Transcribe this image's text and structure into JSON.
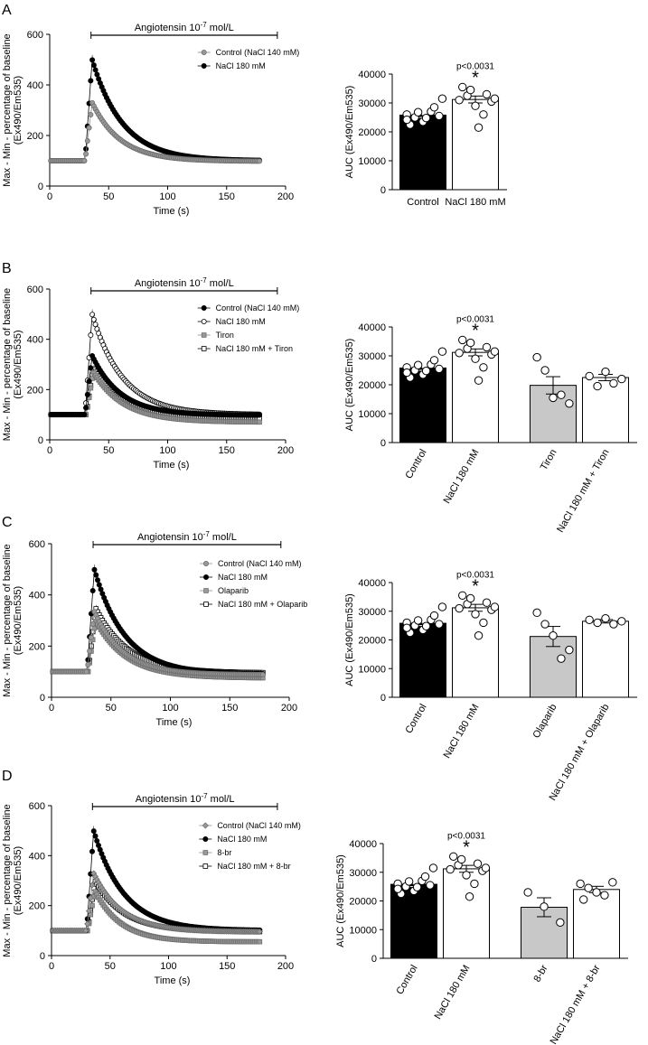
{
  "figure": {
    "common": {
      "line_x_label": "Time (s)",
      "line_y_label_1": "Max - Min - percentage of baseline",
      "line_y_label_2": "(Ex490/Em535)",
      "bar_y_label": "AUC (Ex490/Em535)",
      "stim_label": "Angiotensin 10",
      "stim_exp": "-7",
      "stim_unit": " mol/L",
      "sig_star": "*"
    },
    "colors": {
      "black": "#000000",
      "gray_marker": "#999999",
      "gray_bar": "#c8c8c8",
      "white": "#ffffff"
    }
  },
  "chart_data": [
    {
      "panel": "A",
      "type": "line",
      "xlabel": "Time (s)",
      "ylabel": "Max - Min - percentage of baseline (Ex490/Em535)",
      "xlim": [
        0,
        200
      ],
      "ylim": [
        0,
        600
      ],
      "xticks": [
        0,
        50,
        100,
        150,
        200
      ],
      "yticks": [
        0,
        200,
        400,
        600
      ],
      "stimulus": {
        "label": "Angiotensin 10-7 mol/L",
        "start": 35,
        "end": 193
      },
      "series": [
        {
          "name": "Control (NaCl 140 mM)",
          "marker": "circle-gray",
          "baseline": 100,
          "peak": 330,
          "peak_time": 36,
          "end_value": 98,
          "tau": 24,
          "sem": 10,
          "rise_start": 30
        },
        {
          "name": "NaCl 180 mM",
          "marker": "circle-black",
          "baseline": 100,
          "peak": 500,
          "peak_time": 36,
          "end_value": 100,
          "tau": 26,
          "sem": 20,
          "rise_start": 30
        }
      ]
    },
    {
      "panel": "A",
      "type": "bar",
      "ylabel": "AUC (Ex490/Em535)",
      "ylim": [
        0,
        40000
      ],
      "yticks": [
        0,
        10000,
        20000,
        30000,
        40000
      ],
      "p_value": "p<0.0031",
      "sig_index": 1,
      "categories": [
        "Control",
        "NaCl 180 mM"
      ],
      "rotated": false,
      "bars": [
        {
          "name": "Control",
          "mean": 25800,
          "sem": 800,
          "fill": "black",
          "points": [
            26000,
            25000,
            23500,
            27000,
            25500,
            22500,
            26800,
            24800,
            28500,
            31500,
            24200
          ]
        },
        {
          "name": "NaCl 180 mM",
          "mean": 31200,
          "sem": 1200,
          "fill": "white",
          "points": [
            31000,
            32500,
            29000,
            26000,
            30500,
            35500,
            34500,
            21500,
            33000,
            31500
          ]
        }
      ]
    },
    {
      "panel": "B",
      "type": "line",
      "xlabel": "Time (s)",
      "ylabel": "Max - Min - percentage of baseline (Ex490/Em535)",
      "xlim": [
        0,
        200
      ],
      "ylim": [
        0,
        600
      ],
      "xticks": [
        0,
        50,
        100,
        150,
        200
      ],
      "yticks": [
        0,
        200,
        400,
        600
      ],
      "stimulus": {
        "label": "Angiotensin 10-7 mol/L",
        "start": 35,
        "end": 193
      },
      "series": [
        {
          "name": "Control (NaCl 140 mM)",
          "marker": "circle-black",
          "baseline": 100,
          "peak": 335,
          "peak_time": 36,
          "end_value": 98,
          "tau": 24,
          "sem": 10,
          "rise_start": 30
        },
        {
          "name": "NaCl 180 mM",
          "marker": "circle-open",
          "baseline": 100,
          "peak": 500,
          "peak_time": 36,
          "end_value": 100,
          "tau": 26,
          "sem": 20,
          "rise_start": 30
        },
        {
          "name": "Tiron",
          "marker": "square-gray",
          "baseline": 100,
          "peak": 270,
          "peak_time": 37,
          "end_value": 70,
          "tau": 26,
          "sem": 25,
          "rise_start": 31
        },
        {
          "name": "NaCl 180 mM + Tiron",
          "marker": "square-open",
          "baseline": 100,
          "peak": 285,
          "peak_time": 37,
          "end_value": 85,
          "tau": 26,
          "sem": 15,
          "rise_start": 31
        }
      ]
    },
    {
      "panel": "B",
      "type": "bar",
      "ylabel": "AUC (Ex490/Em535)",
      "ylim": [
        0,
        40000
      ],
      "yticks": [
        0,
        10000,
        20000,
        30000,
        40000
      ],
      "p_value": "p<0.0031",
      "sig_index": 1,
      "categories": [
        "Control",
        "NaCl 180 mM",
        "Tiron",
        "NaCl 180 mM + Tiron"
      ],
      "rotated": true,
      "bars": [
        {
          "name": "Control",
          "mean": 25800,
          "sem": 800,
          "fill": "black",
          "points": [
            26000,
            25000,
            23500,
            27000,
            25500,
            22500,
            26800,
            24800,
            28500,
            31500,
            24200
          ]
        },
        {
          "name": "NaCl 180 mM",
          "mean": 31200,
          "sem": 1200,
          "fill": "white",
          "points": [
            31000,
            32500,
            29000,
            26000,
            30500,
            35500,
            34500,
            21500,
            33000,
            31500
          ]
        },
        {
          "name": "Tiron",
          "mean": 19800,
          "sem": 3000,
          "fill": "gray",
          "points": [
            29500,
            25000,
            15500,
            16500,
            13500
          ]
        },
        {
          "name": "NaCl 180 mM + Tiron",
          "mean": 22500,
          "sem": 1100,
          "fill": "white",
          "points": [
            23000,
            19500,
            24500,
            20500,
            22000
          ]
        }
      ]
    },
    {
      "panel": "C",
      "type": "line",
      "xlabel": "Time (s)",
      "ylabel": "Max - Min - percentage of baseline (Ex490/Em535)",
      "xlim": [
        0,
        200
      ],
      "ylim": [
        0,
        600
      ],
      "xticks": [
        0,
        50,
        100,
        150,
        200
      ],
      "yticks": [
        0,
        200,
        400,
        600
      ],
      "stimulus": {
        "label": "Angiotensin 10-7 mol/L",
        "start": 35,
        "end": 193
      },
      "series": [
        {
          "name": "Control (NaCl 140 mM)",
          "marker": "circle-gray",
          "baseline": 100,
          "peak": 335,
          "peak_time": 36,
          "end_value": 88,
          "tau": 24,
          "sem": 10,
          "rise_start": 30
        },
        {
          "name": "NaCl 180 mM",
          "marker": "circle-black",
          "baseline": 100,
          "peak": 500,
          "peak_time": 36,
          "end_value": 90,
          "tau": 26,
          "sem": 20,
          "rise_start": 30
        },
        {
          "name": "Olaparib",
          "marker": "square-gray",
          "baseline": 100,
          "peak": 300,
          "peak_time": 37,
          "end_value": 75,
          "tau": 26,
          "sem": 35,
          "rise_start": 31
        },
        {
          "name": "NaCl 180 mM + Olaparib",
          "marker": "square-open",
          "baseline": 100,
          "peak": 350,
          "peak_time": 37,
          "end_value": 95,
          "tau": 27,
          "sem": 15,
          "rise_start": 31
        }
      ]
    },
    {
      "panel": "C",
      "type": "bar",
      "ylabel": "AUC (Ex490/Em535)",
      "ylim": [
        0,
        40000
      ],
      "yticks": [
        0,
        10000,
        20000,
        30000,
        40000
      ],
      "p_value": "p<0.0031",
      "sig_index": 1,
      "categories": [
        "Control",
        "NaCl 180 mM",
        "Olaparib",
        "NaCl 180 mM + Olaparib"
      ],
      "rotated": true,
      "bars": [
        {
          "name": "Control",
          "mean": 25800,
          "sem": 800,
          "fill": "black",
          "points": [
            26000,
            25000,
            23500,
            27000,
            25500,
            22500,
            26800,
            24800,
            28500,
            31500,
            24200
          ]
        },
        {
          "name": "NaCl 180 mM",
          "mean": 31200,
          "sem": 1200,
          "fill": "white",
          "points": [
            31000,
            32500,
            29000,
            26000,
            30500,
            35500,
            34500,
            21500,
            33000,
            31500
          ]
        },
        {
          "name": "Olaparib",
          "mean": 21200,
          "sem": 3500,
          "fill": "gray",
          "points": [
            29500,
            25500,
            21500,
            13500,
            16500
          ]
        },
        {
          "name": "NaCl 180 mM + Olaparib",
          "mean": 26500,
          "sem": 600,
          "fill": "white",
          "points": [
            27000,
            26000,
            27500,
            25500,
            26500
          ]
        }
      ]
    },
    {
      "panel": "D",
      "type": "line",
      "xlabel": "Time (s)",
      "ylabel": "Max - Min - percentage of baseline (Ex490/Em535)",
      "xlim": [
        0,
        200
      ],
      "ylim": [
        0,
        600
      ],
      "xticks": [
        0,
        50,
        100,
        150,
        200
      ],
      "yticks": [
        0,
        200,
        400,
        600
      ],
      "stimulus": {
        "label": "Angiotensin 10-7 mol/L",
        "start": 35,
        "end": 193
      },
      "series": [
        {
          "name": "Control (NaCl 140 mM)",
          "marker": "diamond-gray",
          "baseline": 100,
          "peak": 330,
          "peak_time": 36,
          "end_value": 95,
          "tau": 24,
          "sem": 10,
          "rise_start": 30
        },
        {
          "name": "NaCl 180 mM",
          "marker": "circle-black",
          "baseline": 100,
          "peak": 500,
          "peak_time": 36,
          "end_value": 100,
          "tau": 26,
          "sem": 20,
          "rise_start": 30
        },
        {
          "name": "8-br",
          "marker": "square-gray",
          "baseline": 100,
          "peak": 260,
          "peak_time": 37,
          "end_value": 55,
          "tau": 22,
          "sem": 20,
          "rise_start": 31
        },
        {
          "name": "NaCl 180 mM + 8-br",
          "marker": "square-open",
          "baseline": 100,
          "peak": 300,
          "peak_time": 37,
          "end_value": 95,
          "tau": 25,
          "sem": 15,
          "rise_start": 31
        }
      ]
    },
    {
      "panel": "D",
      "type": "bar",
      "ylabel": "AUC (Ex490/Em535)",
      "ylim": [
        0,
        40000
      ],
      "yticks": [
        0,
        10000,
        20000,
        30000,
        40000
      ],
      "p_value": "p<0.0031",
      "sig_index": 1,
      "categories": [
        "Control",
        "NaCl 180 mM",
        "8-br",
        "NaCl 180 mM + 8-br"
      ],
      "rotated": true,
      "bars": [
        {
          "name": "Control",
          "mean": 25800,
          "sem": 800,
          "fill": "black",
          "points": [
            26000,
            25000,
            23500,
            27000,
            25500,
            22500,
            26800,
            24800,
            28500,
            31500,
            24200
          ]
        },
        {
          "name": "NaCl 180 mM",
          "mean": 31200,
          "sem": 1200,
          "fill": "white",
          "points": [
            31000,
            32500,
            29000,
            26000,
            30500,
            35500,
            34500,
            21500,
            33000,
            31500
          ]
        },
        {
          "name": "8-br",
          "mean": 17800,
          "sem": 3300,
          "fill": "gray",
          "points": [
            23000,
            18000,
            12500
          ]
        },
        {
          "name": "NaCl 180 mM + 8-br",
          "mean": 24000,
          "sem": 1100,
          "fill": "white",
          "points": [
            26000,
            24500,
            23000,
            22000,
            26500,
            20500
          ]
        }
      ]
    }
  ]
}
